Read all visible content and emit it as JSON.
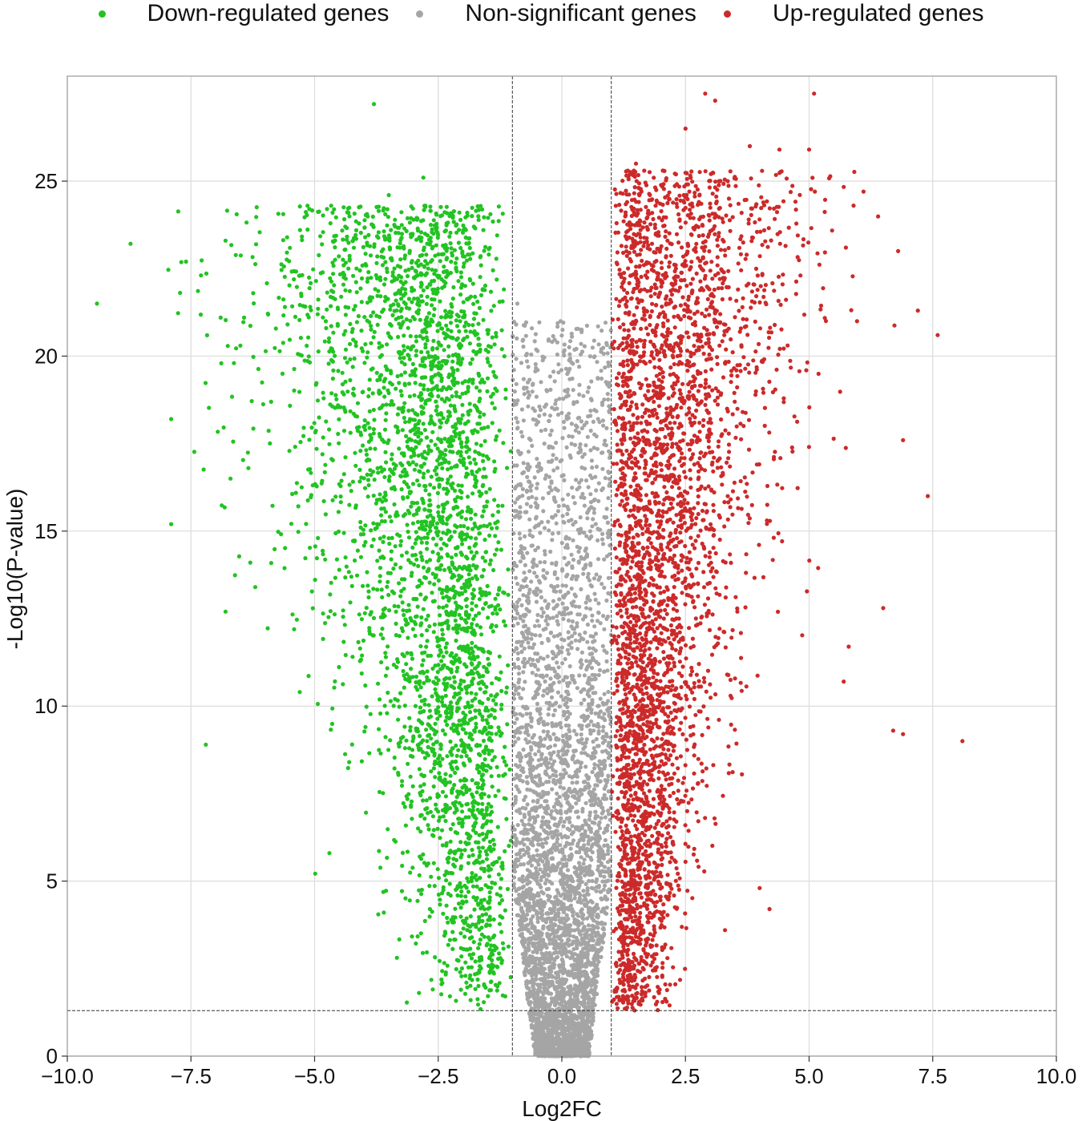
{
  "chart_data": {
    "type": "scatter",
    "title": "",
    "xlabel": "Log2FC",
    "ylabel": "-Log10(P-value)",
    "xlim": [
      -10.0,
      10.0
    ],
    "ylim": [
      0,
      28
    ],
    "x_ticks": [
      "−10.0",
      "−7.5",
      "−5.0",
      "−2.5",
      "0.0",
      "2.5",
      "5.0",
      "7.5",
      "10.0"
    ],
    "x_tick_values": [
      -10,
      -7.5,
      -5,
      -2.5,
      0,
      2.5,
      5,
      7.5,
      10
    ],
    "y_ticks": [
      "0",
      "5",
      "10",
      "15",
      "20",
      "25"
    ],
    "y_tick_values": [
      0,
      5,
      10,
      15,
      20,
      25
    ],
    "grid": true,
    "legend_position": "top-center",
    "thresholds": {
      "log2fc": [
        -1,
        1
      ],
      "neg_log10_p": 1.3
    },
    "series": [
      {
        "name": "Down-regulated genes",
        "color": "#22c322",
        "count": 3400,
        "points": [
          [
            -9.4,
            21.5
          ],
          [
            -7.9,
            18.2
          ],
          [
            -7.9,
            15.2
          ],
          [
            -7.6,
            22.7
          ],
          [
            -7.2,
            8.9
          ],
          [
            -6.9,
            21.1
          ],
          [
            -6.8,
            23.3
          ],
          [
            -6.8,
            12.7
          ],
          [
            -6.7,
            16.5
          ],
          [
            -6.5,
            20.3
          ],
          [
            -6.3,
            14.1
          ],
          [
            -6.2,
            13.4
          ],
          [
            -3.8,
            27.2
          ],
          [
            -3.5,
            24.6
          ],
          [
            -2.8,
            25.1
          ],
          [
            -4.7,
            5.8
          ],
          [
            -3.6,
            4.1
          ],
          [
            -4.3,
            8.4
          ],
          [
            -5.3,
            10.4
          ]
        ]
      },
      {
        "name": "Non-significant genes",
        "color": "#a5a5a5",
        "count": 4200,
        "points": [
          [
            -0.9,
            21.5
          ],
          [
            0.8,
            20.2
          ],
          [
            -0.3,
            19.0
          ],
          [
            0.5,
            18.1
          ]
        ]
      },
      {
        "name": "Up-regulated genes",
        "color": "#cc2a2a",
        "count": 3700,
        "points": [
          [
            2.9,
            27.5
          ],
          [
            5.1,
            27.5
          ],
          [
            3.1,
            27.3
          ],
          [
            2.5,
            26.5
          ],
          [
            3.8,
            26.0
          ],
          [
            4.4,
            25.9
          ],
          [
            5.0,
            25.9
          ],
          [
            1.5,
            25.5
          ],
          [
            6.1,
            24.7
          ],
          [
            5.9,
            24.3
          ],
          [
            6.8,
            23.0
          ],
          [
            7.2,
            21.3
          ],
          [
            7.6,
            20.6
          ],
          [
            8.1,
            9.0
          ],
          [
            7.4,
            16.0
          ],
          [
            6.9,
            17.6
          ],
          [
            6.9,
            9.2
          ],
          [
            6.7,
            9.3
          ],
          [
            6.5,
            12.8
          ],
          [
            5.8,
            11.7
          ],
          [
            5.7,
            10.7
          ],
          [
            4.2,
            4.2
          ],
          [
            4.0,
            4.8
          ],
          [
            3.3,
            3.6
          ]
        ]
      }
    ]
  }
}
